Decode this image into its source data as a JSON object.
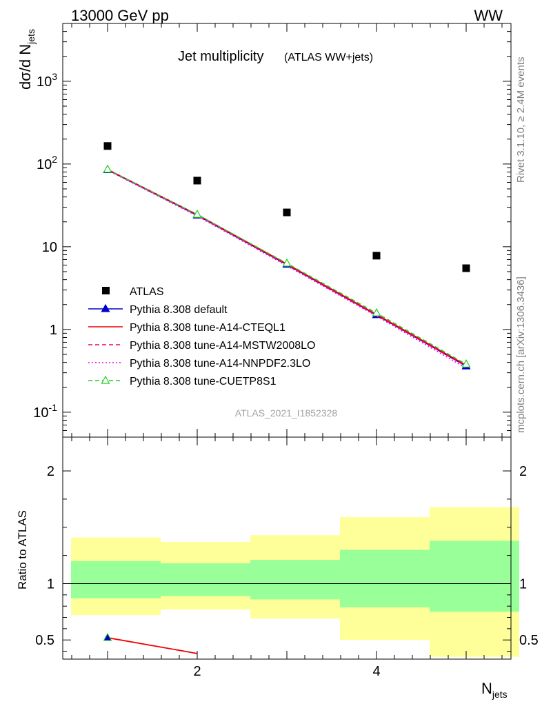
{
  "header": {
    "left": "13000 GeV pp",
    "right": "WW"
  },
  "side_text": {
    "rivet": "Rivet 3.1.10, ≥ 2.4M events",
    "mcplots": "mcplots.cern.ch [arXiv:1306.3436]"
  },
  "chart_data": [
    {
      "type": "scatter",
      "title": "Jet multiplicity",
      "subtitle": "(ATLAS WW+jets)",
      "ylabel_main": "dσ/d N",
      "ylabel_sub": "jets",
      "y_scale": "log",
      "ylim": [
        0.05,
        5000
      ],
      "xlim": [
        0.5,
        5.5
      ],
      "y_tick_labels": [
        "10^-1",
        "1",
        "10",
        "10^2",
        "10^3"
      ],
      "watermark": "ATLAS_2021_I1852328",
      "legend_placement": "center-left",
      "x": [
        1,
        2,
        3,
        4,
        5
      ],
      "series": [
        {
          "name": "ATLAS",
          "values": [
            165,
            63,
            26,
            7.8,
            5.5
          ],
          "color": "#000000",
          "style": "square"
        },
        {
          "name": "Pythia 8.308 default",
          "values": [
            85,
            24,
            6.1,
            1.5,
            0.36
          ],
          "color": "#0000cc",
          "style": "solid-triangle"
        },
        {
          "name": "Pythia 8.308 tune-A14-CTEQL1",
          "values": [
            86,
            24.5,
            6.2,
            1.52,
            0.37
          ],
          "color": "#ee0000",
          "style": "solid"
        },
        {
          "name": "Pythia 8.308 tune-A14-MSTW2008LO",
          "values": [
            85,
            24,
            6.0,
            1.48,
            0.36
          ],
          "color": "#ee0066",
          "style": "dashed"
        },
        {
          "name": "Pythia 8.308 tune-A14-NNPDF2.3LO",
          "values": [
            84,
            23.5,
            5.9,
            1.45,
            0.34
          ],
          "color": "#ee00ee",
          "style": "dotted"
        },
        {
          "name": "Pythia 8.308 tune-CUETP8S1",
          "values": [
            86,
            24.5,
            6.3,
            1.58,
            0.38
          ],
          "color": "#22cc22",
          "style": "dashed-open-triangle"
        }
      ]
    },
    {
      "type": "area",
      "ylabel": "Ratio to ATLAS",
      "xlabel_main": "N",
      "xlabel_sub": "jets",
      "ylim": [
        0.33,
        2.3
      ],
      "xlim": [
        0.5,
        5.5
      ],
      "x_tick_labels": [
        "2",
        "4"
      ],
      "y_tick_labels": [
        "0.5",
        "1",
        "2"
      ],
      "bins": [
        [
          0.5,
          1.5
        ],
        [
          1.5,
          2.5
        ],
        [
          2.5,
          3.5
        ],
        [
          3.5,
          4.5
        ],
        [
          4.5,
          5.5
        ]
      ],
      "band_yellow": [
        [
          0.72,
          1.41
        ],
        [
          0.77,
          1.37
        ],
        [
          0.69,
          1.43
        ],
        [
          0.5,
          1.59
        ],
        [
          0.35,
          1.68
        ]
      ],
      "band_green": [
        [
          0.87,
          1.2
        ],
        [
          0.89,
          1.18
        ],
        [
          0.86,
          1.21
        ],
        [
          0.79,
          1.3
        ],
        [
          0.75,
          1.38
        ]
      ],
      "ratio_line": {
        "x": [
          1,
          2
        ],
        "values": [
          0.52,
          0.38
        ],
        "color": "#ee0000"
      }
    }
  ]
}
